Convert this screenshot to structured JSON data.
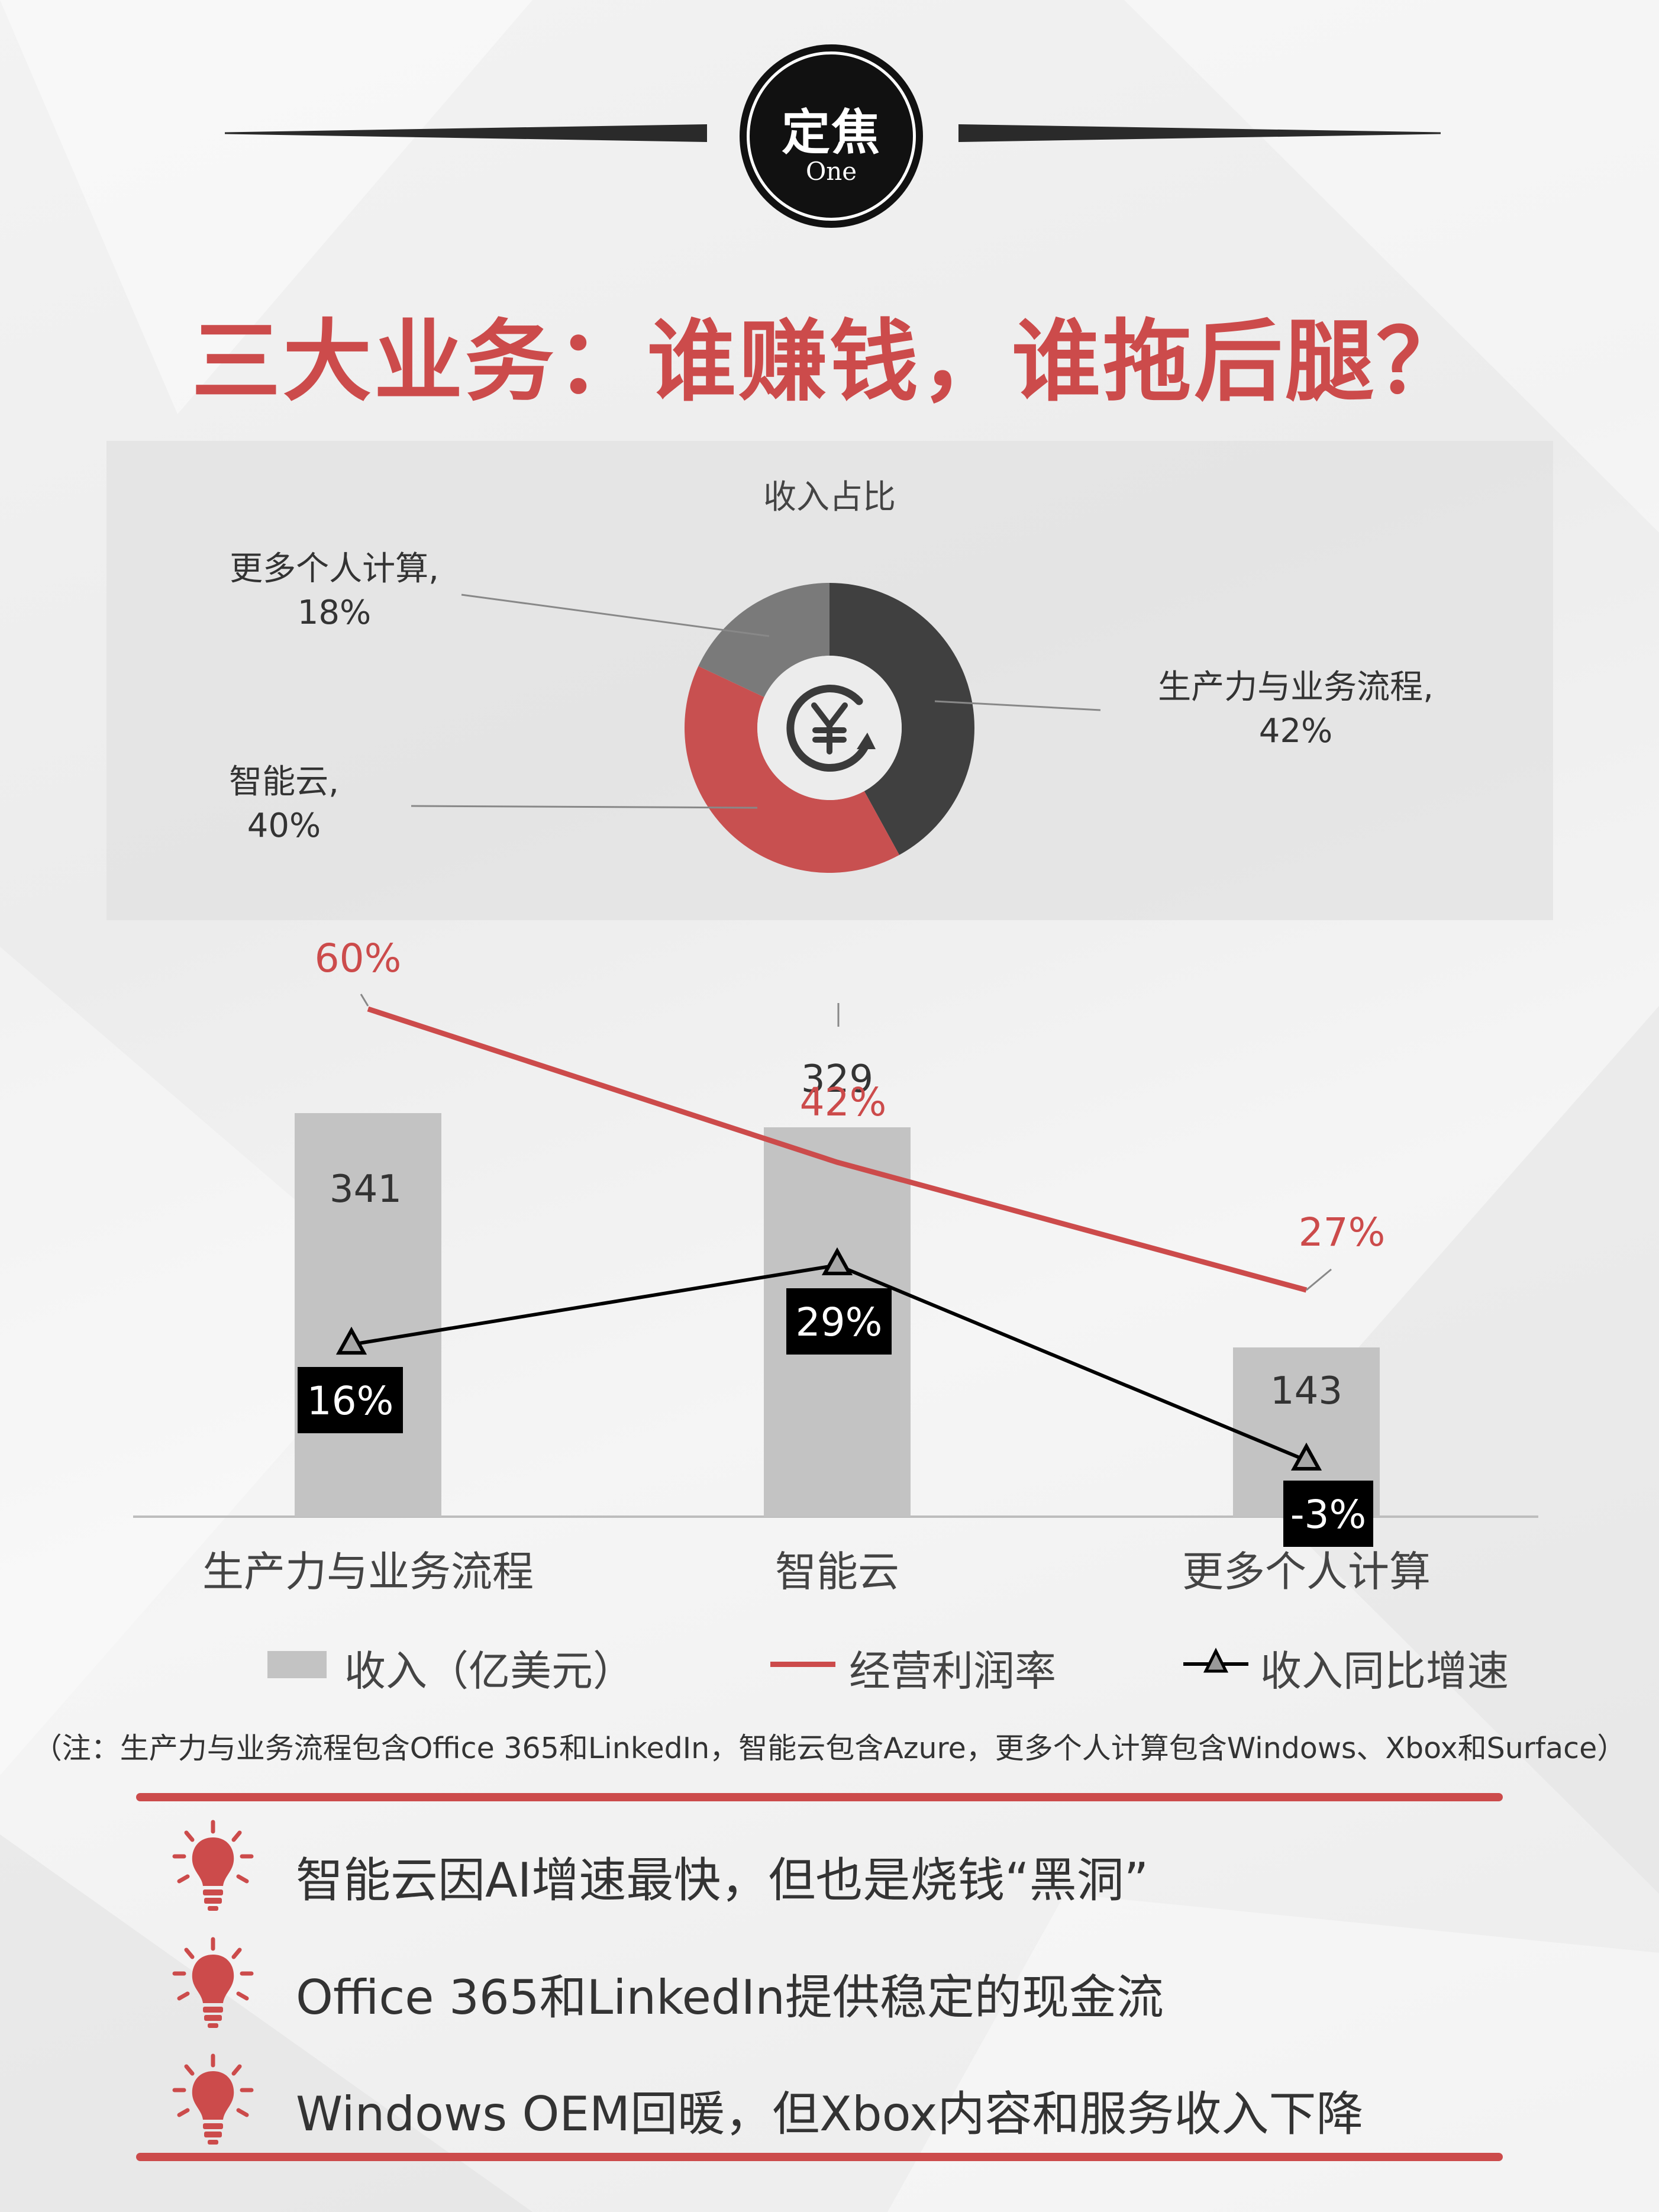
{
  "header": {
    "badge_title": "定焦",
    "badge_subtitle": "One",
    "main_title": "三大业务：谁赚钱，谁拖后腿？"
  },
  "colors": {
    "accent_red": "#cc4b4b",
    "dark_gray": "#404040",
    "mid_gray": "#7a7a7a",
    "bar_gray": "#c3c3c3",
    "black": "#000000"
  },
  "chart_data": [
    {
      "type": "pie",
      "title": "收入占比",
      "slices": [
        {
          "name": "生产力与业务流程",
          "value": 42,
          "label": "生产力与业务流程,",
          "pct_label": "42%",
          "color": "#404040"
        },
        {
          "name": "智能云",
          "value": 40,
          "label": "智能云,",
          "pct_label": "40%",
          "color": "#c85050"
        },
        {
          "name": "更多个人计算",
          "value": 18,
          "label": "更多个人计算,",
          "pct_label": "18%",
          "color": "#7a7a7a"
        }
      ],
      "center_icon": "yen-coin-icon"
    },
    {
      "type": "bar",
      "categories": [
        "生产力与业务流程",
        "智能云",
        "更多个人计算"
      ],
      "series": [
        {
          "name": "收入（亿美元）",
          "type": "bar",
          "values": [
            341,
            329,
            143
          ],
          "labels": [
            "341",
            "329",
            "143"
          ],
          "color": "#c3c3c3"
        },
        {
          "name": "经营利润率",
          "type": "line",
          "values": [
            60,
            42,
            27
          ],
          "labels": [
            "60%",
            "42%",
            "27%"
          ],
          "color": "#cc4b4b"
        },
        {
          "name": "收入同比增速",
          "type": "line",
          "values": [
            16,
            29,
            -3
          ],
          "labels": [
            "16%",
            "29%",
            "-3%"
          ],
          "color": "#000000",
          "marker": "triangle"
        }
      ],
      "legend": {
        "position": "bottom"
      }
    }
  ],
  "note": "（注：生产力与业务流程包含Office 365和LinkedIn，智能云包含Azure，更多个人计算包含Windows、Xbox和Surface）",
  "takeaways": [
    {
      "icon": "lightbulb-icon",
      "text": "智能云因AI增速最快，但也是烧钱“黑洞”"
    },
    {
      "icon": "lightbulb-icon",
      "text": "Office 365和LinkedIn提供稳定的现金流"
    },
    {
      "icon": "lightbulb-icon",
      "text": "Windows OEM回暖，但Xbox内容和服务收入下降"
    }
  ]
}
